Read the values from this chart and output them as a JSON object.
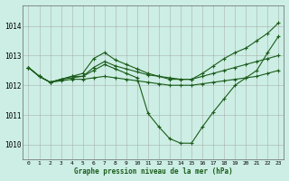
{
  "title": "Graphe pression niveau de la mer (hPa)",
  "background_color": "#cceee4",
  "plot_bg_color": "#cceee4",
  "grid_color": "#999999",
  "line_color": "#1a5c1a",
  "y_ticks": [
    1010,
    1011,
    1012,
    1013,
    1014
  ],
  "ylim": [
    1009.5,
    1014.7
  ],
  "xlim": [
    -0.5,
    23.5
  ],
  "series": [
    [
      1012.6,
      1012.3,
      1012.1,
      1012.2,
      1012.3,
      1012.4,
      1012.9,
      1013.1,
      1012.85,
      1012.7,
      1012.55,
      1012.4,
      1012.3,
      1012.2,
      1012.2,
      1012.2,
      1012.4,
      1012.65,
      1012.9,
      1013.1,
      1013.25,
      1013.5,
      1013.75,
      1014.1
    ],
    [
      1012.6,
      1012.3,
      1012.1,
      1012.2,
      1012.3,
      1012.3,
      1012.6,
      1012.8,
      1012.65,
      1012.55,
      1012.45,
      1012.35,
      1012.3,
      1012.25,
      1012.2,
      1012.2,
      1012.3,
      1012.4,
      1012.5,
      1012.6,
      1012.7,
      1012.8,
      1012.9,
      1013.0
    ],
    [
      1012.6,
      1012.3,
      1012.1,
      1012.15,
      1012.2,
      1012.2,
      1012.25,
      1012.3,
      1012.25,
      1012.2,
      1012.15,
      1012.1,
      1012.05,
      1012.0,
      1012.0,
      1012.0,
      1012.05,
      1012.1,
      1012.15,
      1012.2,
      1012.25,
      1012.3,
      1012.4,
      1012.5
    ],
    [
      1012.6,
      1012.3,
      1012.1,
      1012.2,
      1012.25,
      1012.3,
      1012.5,
      1012.7,
      1012.55,
      1012.4,
      1012.25,
      1011.05,
      1010.6,
      1010.2,
      1010.05,
      1010.05,
      1010.6,
      1011.1,
      1011.55,
      1012.0,
      1012.25,
      1012.5,
      1013.1,
      1013.65
    ]
  ]
}
